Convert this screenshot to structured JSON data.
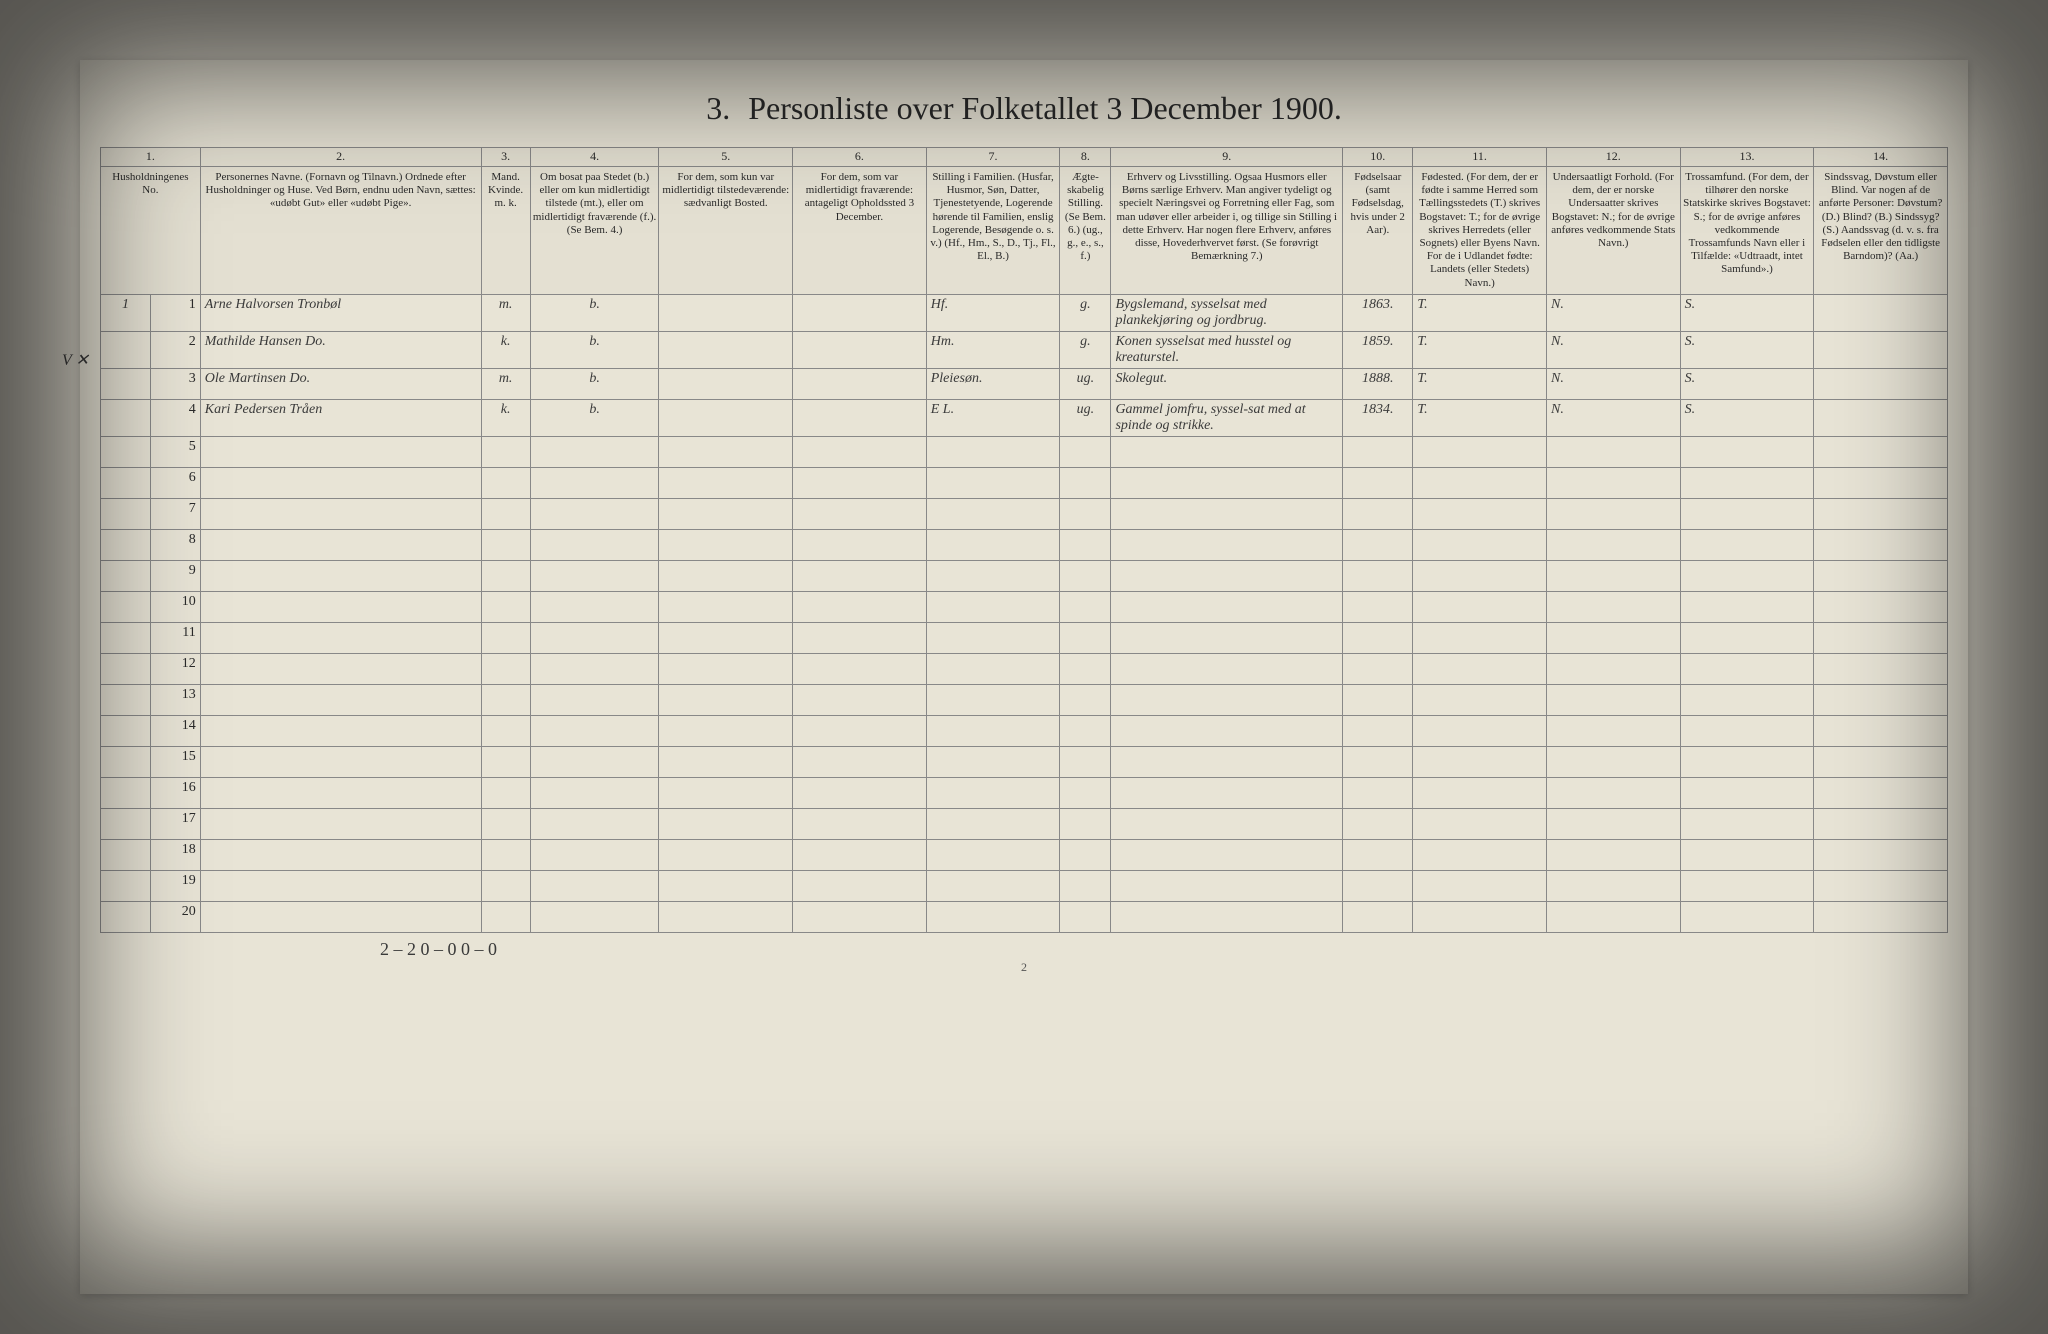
{
  "title_number": "3.",
  "title_text": "Personliste over Folketallet 3 December 1900.",
  "page_number": "2",
  "margin_mark": "V ✕",
  "footer_tally": "2 – 2    0 – 0    0 – 0",
  "headers": {
    "col_nums": [
      "1.",
      "2.",
      "3.",
      "4.",
      "5.",
      "6.",
      "7.",
      "8.",
      "9.",
      "10.",
      "11.",
      "12.",
      "13.",
      "14."
    ],
    "h1": "Husholdningenes No.",
    "h2": "Personernes Navne.\n(Fornavn og Tilnavn.)\nOrdnede efter Husholdninger og Huse.\nVed Børn, endnu uden Navn, sættes: «udøbt Gut» eller «udøbt Pige».",
    "h3": "Mand.\nKvinde.\nm. k.",
    "h4": "Om bosat paa Stedet (b.) eller om kun midlertidigt tilstede (mt.), eller om midlertidigt fraværende (f.). (Se Bem. 4.)",
    "h5": "For dem, som kun var midlertidigt tilstedeværende: sædvanligt Bosted.",
    "h6": "For dem, som var midlertidigt fraværende: antageligt Opholdssted 3 December.",
    "h7": "Stilling i Familien.\n(Husfar, Husmor, Søn, Datter, Tjenestetyende, Logerende hørende til Familien, enslig Logerende, Besøgende o. s. v.)\n(Hf., Hm., S., D., Tj., Fl., El., B.)",
    "h8": "Ægte-skabelig Stilling.\n(Se Bem. 6.)\n(ug., g., e., s., f.)",
    "h9": "Erhverv og Livsstilling.\nOgsaa Husmors eller Børns særlige Erhverv. Man angiver tydeligt og specielt Næringsvei og Forretning eller Fag, som man udøver eller arbeider i, og tillige sin Stilling i dette Erhverv. Har nogen flere Erhverv, anføres disse, Hovederhvervet først.\n(Se forøvrigt Bemærkning 7.)",
    "h10": "Fødselsaar\n(samt Fødselsdag, hvis under 2 Aar).",
    "h11": "Fødested.\n(For dem, der er fødte i samme Herred som Tællingsstedets (T.) skrives Bogstavet: T.; for de øvrige skrives Herredets (eller Sognets) eller Byens Navn. For de i Udlandet fødte: Landets (eller Stedets) Navn.)",
    "h12": "Undersaatligt Forhold.\n(For dem, der er norske Undersaatter skrives Bogstavet: N.; for de øvrige anføres vedkommende Stats Navn.)",
    "h13": "Trossamfund.\n(For dem, der tilhører den norske Statskirke skrives Bogstavet: S.; for de øvrige anføres vedkommende Trossamfunds Navn eller i Tilfælde: «Udtraadt, intet Samfund».)",
    "h14": "Sindssvag, Døvstum eller Blind.\nVar nogen af de anførte Personer:\nDøvstum? (D.)\nBlind? (B.)\nSindssyg? (S.)\nAandssvag (d. v. s. fra Fødselen eller den tidligste Barndom)? (Aa.)"
  },
  "rows": [
    {
      "hh": "1",
      "pn": "1",
      "name": "Arne Halvorsen Tronbøl",
      "sex": "m.",
      "res": "b.",
      "temp": "",
      "away": "",
      "fam": "Hf.",
      "mar": "g.",
      "occ": "Bygslemand, sysselsat med plankekjøring og jordbrug.",
      "year": "1863.",
      "born": "T.",
      "nat": "N.",
      "rel": "S.",
      "dis": ""
    },
    {
      "hh": "",
      "pn": "2",
      "name": "Mathilde Hansen Do.",
      "sex": "k.",
      "res": "b.",
      "temp": "",
      "away": "",
      "fam": "Hm.",
      "mar": "g.",
      "occ": "Konen sysselsat med husstel og kreaturstel.",
      "year": "1859.",
      "born": "T.",
      "nat": "N.",
      "rel": "S.",
      "dis": ""
    },
    {
      "hh": "",
      "pn": "3",
      "name": "Ole Martinsen Do.",
      "sex": "m.",
      "res": "b.",
      "temp": "",
      "away": "",
      "fam": "Pleiesøn.",
      "mar": "ug.",
      "occ": "Skolegut.",
      "year": "1888.",
      "born": "T.",
      "nat": "N.",
      "rel": "S.",
      "dis": ""
    },
    {
      "hh": "",
      "pn": "4",
      "name": "Kari Pedersen Tråen",
      "sex": "k.",
      "res": "b.",
      "temp": "",
      "away": "",
      "fam": "E L.",
      "mar": "ug.",
      "occ": "Gammel jomfru, syssel-sat med at spinde og strikke.",
      "year": "1834.",
      "born": "T.",
      "nat": "N.",
      "rel": "S.",
      "dis": ""
    }
  ],
  "empty_rows": [
    "5",
    "6",
    "7",
    "8",
    "9",
    "10",
    "11",
    "12",
    "13",
    "14",
    "15",
    "16",
    "17",
    "18",
    "19",
    "20"
  ],
  "style": {
    "background_color": "#1a1a1a",
    "page_color": "#d8d4c8",
    "sheet_color": "#e8e4d6",
    "border_color": "#888888",
    "text_color": "#2a2a2a",
    "handwriting_color": "#3a3a3a",
    "title_fontsize": 32,
    "header_fontsize": 11,
    "body_fontsize": 14
  }
}
